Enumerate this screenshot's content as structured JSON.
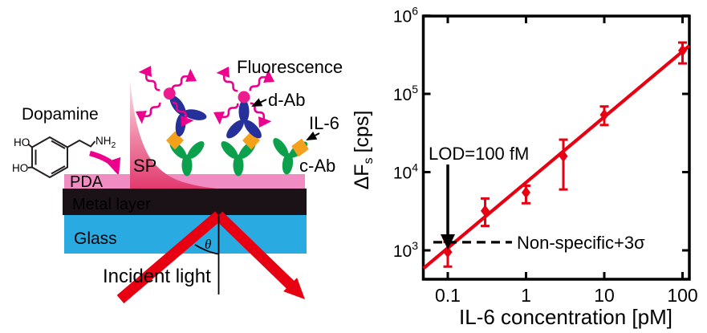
{
  "diagram": {
    "labels": {
      "dopamine": "Dopamine",
      "ho_top": "HO",
      "ho_bottom": "HO",
      "nh": "NH",
      "nh_sub": "2",
      "fluorescence": "Fluorescence",
      "d_ab": "d-Ab",
      "il6": "IL-6",
      "c_ab": "c-Ab",
      "sp": "SP",
      "pda": "PDA",
      "metal_layer": "Metal layer",
      "glass": "Glass",
      "incident_light": "Incident light",
      "theta": "θ"
    },
    "colors": {
      "fluorescence_magenta": "#ec008c",
      "antibody_blue": "#26309b",
      "antibody_green": "#0da04c",
      "il6_orange": "#f5a11c",
      "pda_pink": "#f18cc3",
      "sp_deep_pink": "#e23a6e",
      "metal_black": "#1a1216",
      "glass_blue": "#29abe2",
      "light_red": "#e60012"
    }
  },
  "chart_data": {
    "type": "scatter",
    "xlabel": "IL-6 concentration [pM]",
    "ylabel": "ΔFs [cps]",
    "ylabel_parts": {
      "main": "ΔF",
      "sub": "s",
      "rest": "[cps]"
    },
    "x_scale": "log",
    "y_scale": "log",
    "xlim": [
      0.049,
      122
    ],
    "ylim": [
      430,
      1000000
    ],
    "x_ticks": [
      0.1,
      1,
      10,
      100
    ],
    "x_tick_labels": [
      "0.1",
      "1",
      "10",
      "100"
    ],
    "y_tick_exponents": [
      3,
      4,
      5,
      6
    ],
    "points": {
      "x": [
        0.1,
        0.3,
        1,
        3,
        10,
        100
      ],
      "y": [
        950,
        3200,
        5500,
        16000,
        54000,
        358000
      ],
      "y_lower": [
        620,
        2050,
        4000,
        6000,
        40000,
        245000
      ],
      "y_upper": [
        1280,
        4600,
        6700,
        26000,
        69000,
        453000
      ]
    },
    "fit_line": {
      "x": [
        0.049,
        122
      ],
      "y": [
        590,
        412000
      ]
    },
    "dashed_line": {
      "y": 1270,
      "label": "Non-specific+3σ"
    },
    "lod_annotation": {
      "label": "LOD=100 fM",
      "arrow_x": 0.1
    },
    "marker": "diamond",
    "grid": "off",
    "legend": "none",
    "colors": {
      "data_red": "#e60012",
      "annotation_black": "#000000"
    }
  }
}
